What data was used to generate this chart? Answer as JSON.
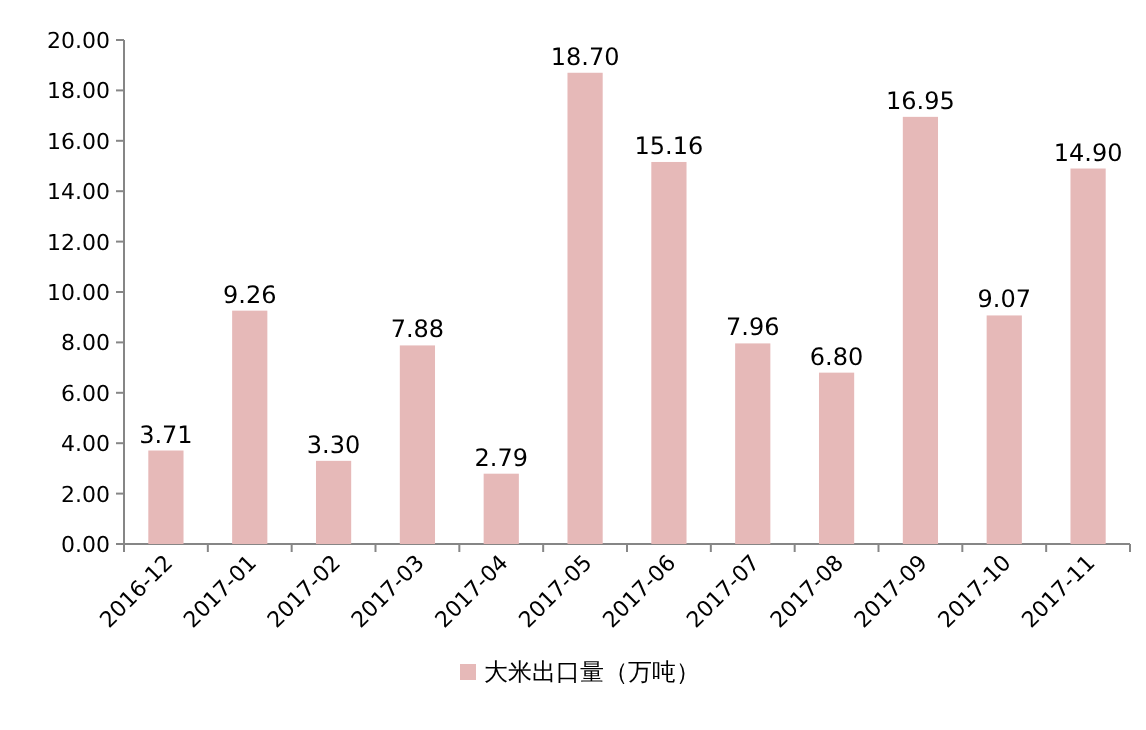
{
  "chart_data": {
    "type": "bar",
    "categories": [
      "2016-12",
      "2017-01",
      "2017-02",
      "2017-03",
      "2017-04",
      "2017-05",
      "2017-06",
      "2017-07",
      "2017-08",
      "2017-09",
      "2017-10",
      "2017-11"
    ],
    "series": [
      {
        "name": "大米出口量（万吨）",
        "color": "#e6b9b8",
        "values": [
          3.71,
          9.26,
          3.3,
          7.88,
          2.79,
          18.7,
          15.16,
          7.96,
          6.8,
          16.95,
          9.07,
          14.9
        ]
      }
    ],
    "value_labels": [
      "3.71",
      "9.26",
      "3.30",
      "7.88",
      "2.79",
      "18.70",
      "15.16",
      "7.96",
      "6.80",
      "16.95",
      "9.07",
      "14.90"
    ],
    "ylim": [
      0,
      20
    ],
    "yticks": [
      {
        "value": 0,
        "label": "0.00"
      },
      {
        "value": 2,
        "label": "2.00"
      },
      {
        "value": 4,
        "label": "4.00"
      },
      {
        "value": 6,
        "label": "6.00"
      },
      {
        "value": 8,
        "label": "8.00"
      },
      {
        "value": 10,
        "label": "10.00"
      },
      {
        "value": 12,
        "label": "12.00"
      },
      {
        "value": 14,
        "label": "14.00"
      },
      {
        "value": 16,
        "label": "16.00"
      },
      {
        "value": 18,
        "label": "18.00"
      },
      {
        "value": 20,
        "label": "20.00"
      }
    ],
    "legend": "bottom"
  }
}
